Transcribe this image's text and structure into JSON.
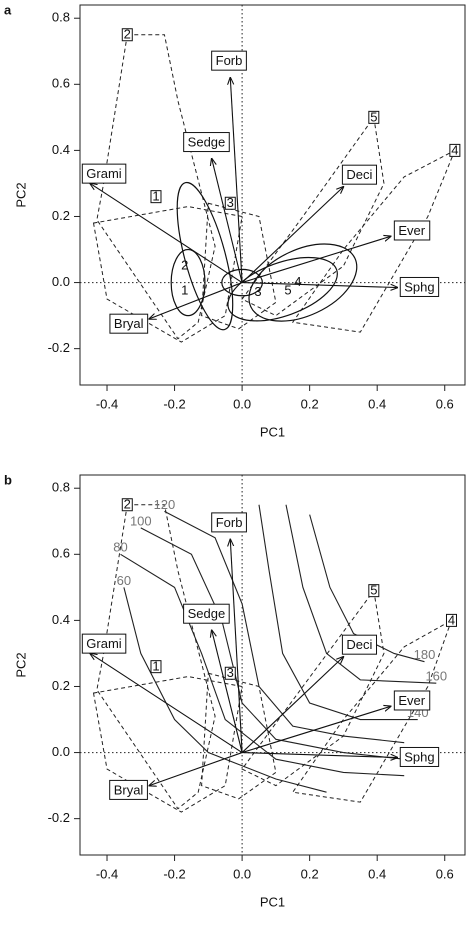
{
  "chart_data": [
    {
      "type": "biplot",
      "panel": "a",
      "xlabel": "PC1",
      "ylabel": "PC2",
      "xlim": [
        -0.48,
        0.66
      ],
      "ylim": [
        -0.31,
        0.84
      ],
      "xticks": [
        -0.4,
        -0.2,
        {
          "value": 0,
          "label": "0.0"
        },
        0.2,
        0.4,
        0.6
      ],
      "yticks": [
        -0.2,
        {
          "value": 0,
          "label": "0.0"
        },
        0.2,
        0.4,
        0.6,
        0.8
      ],
      "arrows": [
        {
          "name": "Forb",
          "x": -0.035,
          "y": 0.62
        },
        {
          "name": "Sedge",
          "x": -0.09,
          "y": 0.375
        },
        {
          "name": "Grami",
          "x": -0.45,
          "y": 0.3
        },
        {
          "name": "Deci",
          "x": 0.3,
          "y": 0.29
        },
        {
          "name": "Ever",
          "x": 0.44,
          "y": 0.14
        },
        {
          "name": "Sphg",
          "x": 0.46,
          "y": -0.015
        },
        {
          "name": "Bryal",
          "x": -0.275,
          "y": -0.11
        }
      ],
      "sites": [
        {
          "label": "1",
          "x": -0.255,
          "y": 0.26
        },
        {
          "label": "2",
          "x": -0.34,
          "y": 0.75
        },
        {
          "label": "3",
          "x": -0.035,
          "y": 0.24
        },
        {
          "label": "4",
          "x": 0.63,
          "y": 0.4
        },
        {
          "label": "5",
          "x": 0.39,
          "y": 0.5
        }
      ],
      "hulls": [
        {
          "x": [
            -0.44,
            -0.16,
            0.0,
            -0.05,
            -0.18,
            -0.4
          ],
          "y": [
            0.18,
            0.23,
            0.2,
            -0.1,
            -0.18,
            -0.05
          ]
        },
        {
          "x": [
            -0.34,
            -0.23,
            -0.19,
            -0.08,
            -0.13,
            -0.19,
            -0.43,
            -0.41
          ],
          "y": [
            0.75,
            0.75,
            0.55,
            0.11,
            -0.12,
            -0.17,
            0.19,
            0.3
          ]
        },
        {
          "x": [
            -0.1,
            0.05,
            0.1,
            -0.01,
            -0.12
          ],
          "y": [
            0.24,
            0.2,
            -0.06,
            -0.14,
            -0.1
          ]
        },
        {
          "x": [
            0.63,
            0.55,
            0.35,
            0.15,
            0.3,
            0.48
          ],
          "y": [
            0.4,
            0.2,
            -0.15,
            -0.12,
            0.1,
            0.32
          ]
        },
        {
          "x": [
            0.39,
            0.42,
            0.3,
            0.1,
            0.0,
            0.18
          ],
          "y": [
            0.5,
            0.3,
            0.05,
            -0.1,
            -0.05,
            0.2
          ]
        }
      ],
      "ellipses": [
        {
          "x": -0.16,
          "y": 0.0,
          "rx": 0.05,
          "ry": 0.1,
          "angle": 0
        },
        {
          "x": -0.11,
          "y": 0.08,
          "rx": 0.06,
          "ry": 0.23,
          "angle": -15
        },
        {
          "x": 0.0,
          "y": 0.0,
          "rx": 0.06,
          "ry": 0.04,
          "angle": 0
        },
        {
          "x": 0.12,
          "y": -0.02,
          "rx": 0.17,
          "ry": 0.08,
          "angle": -20
        },
        {
          "x": 0.18,
          "y": 0.0,
          "rx": 0.17,
          "ry": 0.1,
          "angle": -25
        }
      ],
      "centroids": [
        {
          "label": "1",
          "x": -0.17,
          "y": -0.025
        },
        {
          "label": "2",
          "x": -0.17,
          "y": 0.05
        },
        {
          "label": "3",
          "x": 0.047,
          "y": -0.03
        },
        {
          "label": "4",
          "x": 0.165,
          "y": 0.0
        },
        {
          "label": "5",
          "x": 0.136,
          "y": -0.025
        }
      ]
    },
    {
      "type": "biplot",
      "panel": "b",
      "xlabel": "PC1",
      "ylabel": "PC2",
      "xlim": [
        -0.48,
        0.66
      ],
      "ylim": [
        -0.31,
        0.84
      ],
      "xticks": [
        -0.4,
        -0.2,
        {
          "value": 0,
          "label": "0.0"
        },
        0.2,
        0.4,
        0.6
      ],
      "yticks": [
        -0.2,
        {
          "value": 0,
          "label": "0.0"
        },
        0.2,
        0.4,
        0.6,
        0.8
      ],
      "arrows": [
        {
          "name": "Forb",
          "x": -0.035,
          "y": 0.645
        },
        {
          "name": "Sedge",
          "x": -0.09,
          "y": 0.37
        },
        {
          "name": "Grami",
          "x": -0.45,
          "y": 0.3
        },
        {
          "name": "Deci",
          "x": 0.3,
          "y": 0.29
        },
        {
          "name": "Ever",
          "x": 0.44,
          "y": 0.14
        },
        {
          "name": "Sphg",
          "x": 0.46,
          "y": -0.015
        },
        {
          "name": "Bryal",
          "x": -0.275,
          "y": -0.1
        }
      ],
      "sites": [
        {
          "label": "1",
          "x": -0.255,
          "y": 0.26
        },
        {
          "label": "2",
          "x": -0.34,
          "y": 0.75
        },
        {
          "label": "3",
          "x": -0.035,
          "y": 0.24
        },
        {
          "label": "4",
          "x": 0.62,
          "y": 0.4
        },
        {
          "label": "5",
          "x": 0.39,
          "y": 0.49
        }
      ],
      "hulls": [
        {
          "x": [
            -0.44,
            -0.16,
            0.0,
            -0.05,
            -0.18,
            -0.4
          ],
          "y": [
            0.18,
            0.23,
            0.2,
            -0.1,
            -0.18,
            -0.05
          ]
        },
        {
          "x": [
            -0.34,
            -0.23,
            -0.19,
            -0.08,
            -0.13,
            -0.19,
            -0.43,
            -0.41
          ],
          "y": [
            0.75,
            0.75,
            0.55,
            0.11,
            -0.12,
            -0.17,
            0.19,
            0.3
          ]
        },
        {
          "x": [
            -0.1,
            0.05,
            0.1,
            -0.01,
            -0.12
          ],
          "y": [
            0.24,
            0.2,
            -0.06,
            -0.14,
            -0.1
          ]
        },
        {
          "x": [
            0.62,
            0.55,
            0.35,
            0.15,
            0.3,
            0.48
          ],
          "y": [
            0.4,
            0.2,
            -0.15,
            -0.12,
            0.1,
            0.32
          ]
        },
        {
          "x": [
            0.39,
            0.42,
            0.3,
            0.1,
            0.0,
            0.18
          ],
          "y": [
            0.49,
            0.3,
            0.05,
            -0.1,
            -0.05,
            0.2
          ]
        }
      ],
      "contours": [
        {
          "level": 60,
          "x": [
            -0.35,
            -0.3,
            -0.2,
            -0.1,
            0.1,
            0.25
          ],
          "y": [
            0.5,
            0.3,
            0.1,
            0.0,
            -0.08,
            -0.12
          ]
        },
        {
          "level": 80,
          "x": [
            -0.36,
            -0.2,
            -0.12,
            -0.05,
            0.1,
            0.3,
            0.48
          ],
          "y": [
            0.6,
            0.5,
            0.3,
            0.1,
            -0.02,
            -0.06,
            -0.07
          ]
        },
        {
          "level": 100,
          "x": [
            -0.3,
            -0.15,
            -0.06,
            0.0,
            0.1,
            0.3,
            0.48
          ],
          "y": [
            0.68,
            0.6,
            0.4,
            0.15,
            0.04,
            0.0,
            -0.02
          ]
        },
        {
          "level": 120,
          "x": [
            -0.23,
            -0.08,
            0.0,
            0.05,
            0.15,
            0.3,
            0.48
          ],
          "y": [
            0.73,
            0.65,
            0.45,
            0.2,
            0.08,
            0.05,
            0.03
          ]
        },
        {
          "level": 140,
          "x": [
            0.52,
            0.35,
            0.2,
            0.12,
            0.08,
            0.05
          ],
          "y": [
            0.1,
            0.1,
            0.15,
            0.3,
            0.55,
            0.75
          ]
        },
        {
          "level": 160,
          "x": [
            0.575,
            0.35,
            0.25,
            0.18,
            0.13
          ],
          "y": [
            0.21,
            0.22,
            0.3,
            0.5,
            0.75
          ]
        },
        {
          "level": 180,
          "x": [
            0.54,
            0.45,
            0.33,
            0.26,
            0.2
          ],
          "y": [
            0.275,
            0.3,
            0.36,
            0.5,
            0.72
          ]
        }
      ]
    }
  ]
}
